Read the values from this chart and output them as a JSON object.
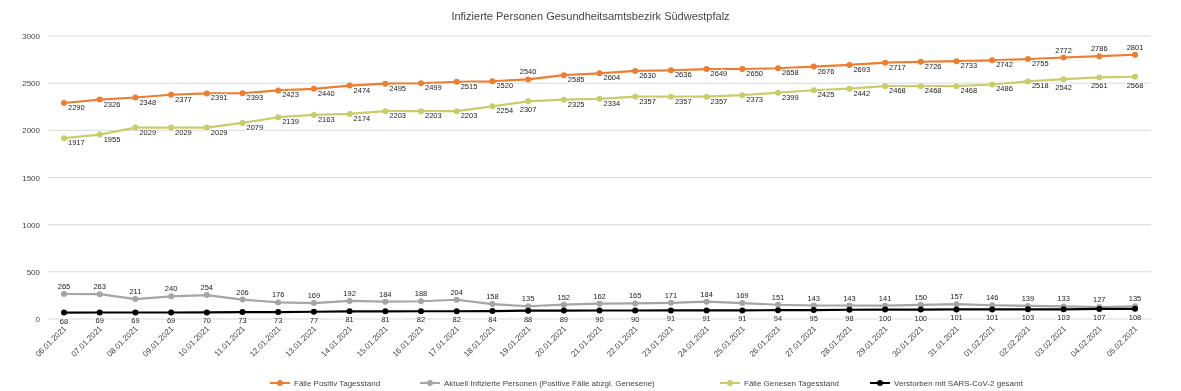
{
  "chart_data": {
    "type": "line",
    "title": "Infizierte Personen Gesundheitsamtsbezirk Südwestpfalz",
    "categories": [
      "06.01.2021",
      "07.01.2021",
      "08.01.2021",
      "09.01.2021",
      "10.01.2021",
      "11.01.2021",
      "12.01.2021",
      "13.01.2021",
      "14.01.2021",
      "15.01.2021",
      "16.01.2021",
      "17.01.2021",
      "18.01.2021",
      "19.01.2021",
      "20.01.2021",
      "21.01.2021",
      "22.01.2021",
      "23.01.2021",
      "24.01.2021",
      "25.01.2021",
      "26.01.2021",
      "27.01.2021",
      "28.01.2021",
      "29.01.2021",
      "30.01.2021",
      "31.01.2021",
      "01.02.2021",
      "02.02.2021",
      "03.02.2021",
      "04.02.2021",
      "05.02.2021"
    ],
    "series": [
      {
        "name": "Fälle Positiv Tagesstand",
        "color": "#ed7d31",
        "values": [
          2290,
          2326,
          2348,
          2377,
          2391,
          2393,
          2423,
          2440,
          2474,
          2495,
          2499,
          2515,
          2520,
          2540,
          2585,
          2604,
          2630,
          2636,
          2649,
          2650,
          2658,
          2676,
          2693,
          2717,
          2726,
          2733,
          2742,
          2755,
          2772,
          2786,
          2801
        ]
      },
      {
        "name": "Aktuell Infizierte Personen (Positive Fälle abzgl. Genesene)",
        "color": "#a5a5a5",
        "values": [
          265,
          263,
          211,
          240,
          254,
          206,
          176,
          169,
          192,
          184,
          188,
          204,
          158,
          135,
          152,
          162,
          165,
          171,
          184,
          169,
          151,
          143,
          143,
          141,
          150,
          157,
          146,
          139,
          133,
          127,
          135
        ]
      },
      {
        "name": "Fälle Genesen Tagesstand",
        "color": "#c9cc6a",
        "values": [
          1917,
          1955,
          2029,
          2029,
          2029,
          2079,
          2139,
          2163,
          2174,
          2203,
          2203,
          2203,
          2254,
          2307,
          2325,
          2334,
          2357,
          2357,
          2357,
          2373,
          2399,
          2425,
          2442,
          2468,
          2468,
          2468,
          2486,
          2518,
          2542,
          2561,
          2568
        ]
      },
      {
        "name": "Verstorben mit SARS-CoV-2 gesamt",
        "color": "#000000",
        "values": [
          68,
          69,
          69,
          69,
          70,
          73,
          73,
          77,
          81,
          81,
          82,
          82,
          84,
          88,
          89,
          90,
          90,
          91,
          91,
          91,
          94,
          95,
          98,
          100,
          100,
          101,
          101,
          103,
          103,
          107,
          108
        ]
      }
    ],
    "ylim": [
      0,
      3000
    ],
    "yticks": [
      0,
      500,
      1000,
      1500,
      2000,
      2500,
      3000
    ],
    "grid": "y",
    "legend": "bottom",
    "data_labels": true,
    "marker": "circle",
    "line_style": "solid"
  }
}
